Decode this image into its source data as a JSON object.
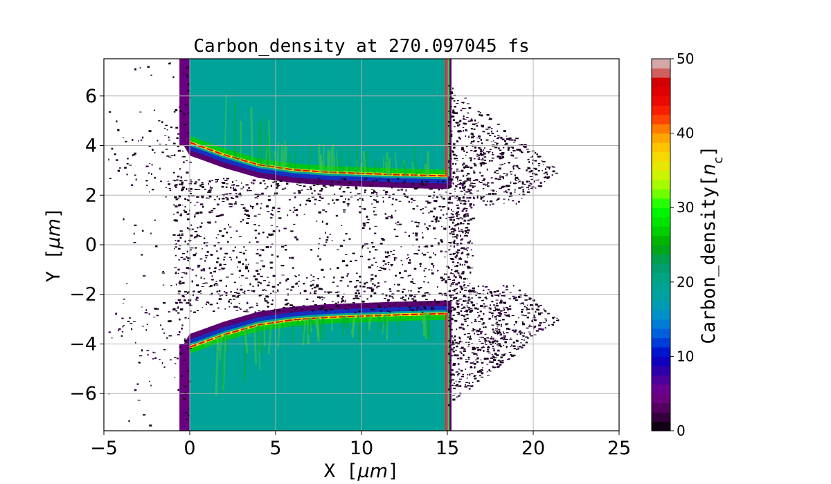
{
  "chart_data": {
    "type": "heatmap",
    "title": "Carbon_density at 270.097045 fs",
    "xlabel_text": "X  [",
    "xlabel_unit": "μm",
    "xlabel_close": "]",
    "ylabel_text": "Y  [",
    "ylabel_unit": "μm",
    "ylabel_close": "]",
    "xlim": [
      -5,
      25
    ],
    "ylim": [
      -7.5,
      7.5
    ],
    "xticks": [
      -5,
      0,
      5,
      10,
      15,
      20,
      25
    ],
    "xtick_labels": [
      "−5",
      "0",
      "5",
      "10",
      "15",
      "20",
      "25"
    ],
    "yticks": [
      -6,
      -4,
      -2,
      0,
      2,
      4,
      6
    ],
    "ytick_labels": [
      "−6",
      "−4",
      "−2",
      "0",
      "2",
      "4",
      "6"
    ],
    "grid": true,
    "colorbar": {
      "label_prefix": "Carbon_density[",
      "label_var": "n",
      "label_sub": "c",
      "label_suffix": "]",
      "range": [
        0,
        50
      ],
      "ticks": [
        0,
        10,
        20,
        30,
        40,
        50
      ],
      "tick_labels": [
        "0",
        "10",
        "20",
        "30",
        "40",
        "50"
      ],
      "colormap": "nipy_spectral"
    },
    "regions": {
      "slab_bulk_density": 19,
      "slab_x_range": [
        0,
        15
      ],
      "upper_slab_inner_edge_y": [
        4.1,
        3.6,
        3.2,
        3.0,
        2.9,
        2.85,
        2.8,
        2.75
      ],
      "lower_slab_inner_edge_y": [
        -4.1,
        -3.6,
        -3.2,
        -3.0,
        -2.9,
        -2.85,
        -2.8,
        -2.75
      ],
      "edge_x_samples": [
        0,
        2,
        4,
        6,
        8,
        10,
        12,
        14.8
      ],
      "peak_density_ridge": 50,
      "rear_surface_x": 15,
      "front_surface_x": 0,
      "expansion_extent_x": 21.5
    }
  }
}
